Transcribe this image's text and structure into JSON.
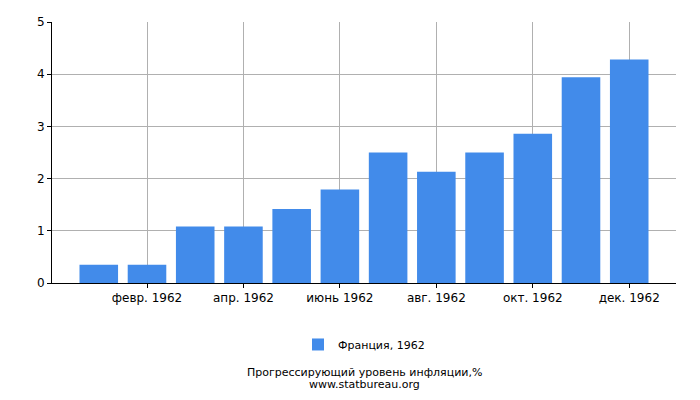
{
  "chart_data": {
    "type": "bar",
    "title": "Прогрессирующий уровень инфляции,%",
    "subtitle": "www.statbureau.org",
    "categories": [
      null,
      "февр. 1962",
      null,
      "апр. 1962",
      null,
      "июнь 1962",
      null,
      "авг. 1962",
      null,
      "окт. 1962",
      null,
      "дек. 1962"
    ],
    "series": [
      {
        "name": "Франция, 1962",
        "color": "#428bea",
        "values": [
          0.35,
          0.35,
          1.08,
          1.08,
          1.42,
          1.79,
          2.5,
          2.13,
          2.5,
          2.86,
          3.94,
          4.28
        ]
      }
    ],
    "ylim": [
      0,
      5
    ],
    "yticks": [
      0,
      1,
      2,
      3,
      4,
      5
    ],
    "grid": true,
    "legend": "bottom"
  }
}
